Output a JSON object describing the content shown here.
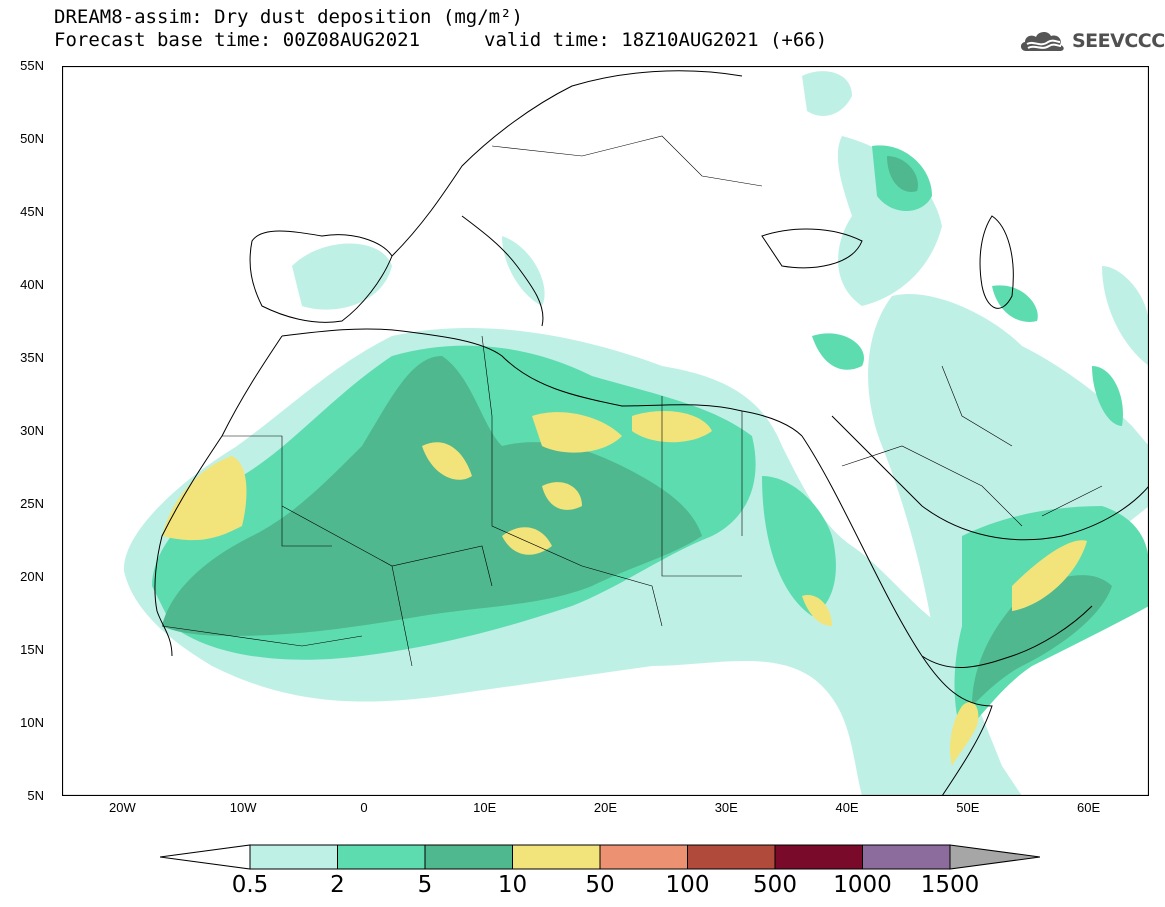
{
  "header": {
    "title_line1": "DREAM8-assim: Dry dust deposition (mg/m²)",
    "title_line2": "Forecast base time: 00Z08AUG2021",
    "valid_time": "valid time: 18Z10AUG2021 (+66)",
    "logo_text": "SEEVCCC",
    "logo_icon": "cloud-logo-icon"
  },
  "map": {
    "extent": {
      "lon_min": -25,
      "lon_max": 65,
      "lat_min": 5,
      "lat_max": 55
    },
    "lat_ticks": [
      "55N",
      "50N",
      "45N",
      "40N",
      "35N",
      "30N",
      "25N",
      "20N",
      "15N",
      "10N",
      "5N"
    ],
    "lat_values": [
      55,
      50,
      45,
      40,
      35,
      30,
      25,
      20,
      15,
      10,
      5
    ],
    "lon_ticks": [
      "20W",
      "10W",
      "0",
      "10E",
      "20E",
      "30E",
      "40E",
      "50E",
      "60E"
    ],
    "lon_values": [
      -20,
      -10,
      0,
      10,
      20,
      30,
      40,
      50,
      60
    ]
  },
  "legend": {
    "labels": [
      "0.5",
      "2",
      "5",
      "10",
      "50",
      "100",
      "500",
      "1000",
      "1500"
    ],
    "colors": [
      "#bff0e6",
      "#5ddcb0",
      "#4fb88e",
      "#f2e47a",
      "#ec9272",
      "#b04a3a",
      "#7a0a2a",
      "#8c6c9c"
    ],
    "low_arrow_color": "#ffffff",
    "high_arrow_color": "#a6a6a6"
  }
}
